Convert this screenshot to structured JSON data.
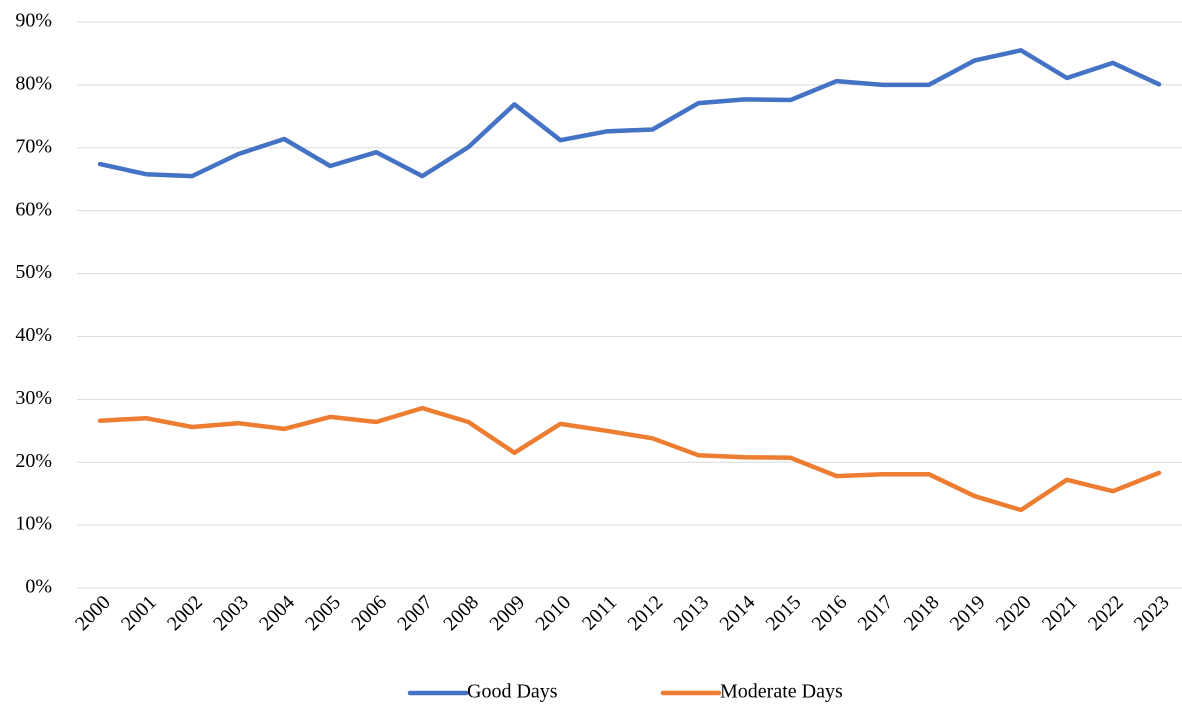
{
  "chart_data": {
    "type": "line",
    "categories": [
      "2000",
      "2001",
      "2002",
      "2003",
      "2004",
      "2005",
      "2006",
      "2007",
      "2008",
      "2009",
      "2010",
      "2011",
      "2012",
      "2013",
      "2014",
      "2015",
      "2016",
      "2017",
      "2018",
      "2019",
      "2020",
      "2021",
      "2022",
      "2023"
    ],
    "series": [
      {
        "name": "Good Days",
        "color": "#4472c4",
        "values": [
          67.4,
          65.8,
          65.5,
          69.0,
          71.4,
          67.1,
          69.3,
          65.5,
          70.1,
          76.9,
          71.2,
          72.6,
          72.9,
          77.1,
          77.7,
          77.6,
          80.6,
          80.0,
          80.0,
          83.9,
          85.5,
          81.1,
          83.5,
          80.1
        ]
      },
      {
        "name": "Moderate Days",
        "color": "#ed7d31",
        "values": [
          26.6,
          27.0,
          25.6,
          26.2,
          25.3,
          27.2,
          26.4,
          28.6,
          26.4,
          21.5,
          26.1,
          25.0,
          23.8,
          21.1,
          20.8,
          20.7,
          17.8,
          18.1,
          18.1,
          14.6,
          12.4,
          17.2,
          15.4,
          18.3
        ]
      }
    ],
    "ylim": [
      0,
      90
    ],
    "yticks": [
      {
        "value": 0,
        "label": "0%"
      },
      {
        "value": 10,
        "label": "10%"
      },
      {
        "value": 20,
        "label": "20%"
      },
      {
        "value": 30,
        "label": "30%"
      },
      {
        "value": 40,
        "label": "40%"
      },
      {
        "value": 50,
        "label": "50%"
      },
      {
        "value": 60,
        "label": "60%"
      },
      {
        "value": 70,
        "label": "70%"
      },
      {
        "value": 80,
        "label": "80%"
      },
      {
        "value": 90,
        "label": "90%"
      }
    ],
    "grid": true,
    "legend": "bottom"
  }
}
